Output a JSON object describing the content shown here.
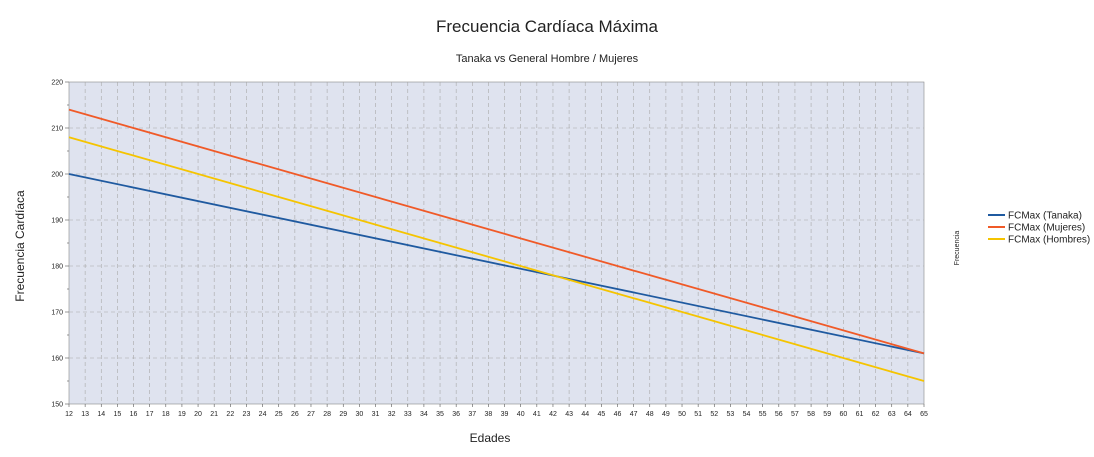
{
  "chart_data": {
    "type": "line",
    "title": "Frecuencia Cardíaca Máxima",
    "subtitle": "Tanaka vs General Hombre / Mujeres",
    "xlabel": "Edades",
    "ylabel": "Frecuencia Cardíaca",
    "side_label": "Frecuencia",
    "xlim": [
      12,
      65
    ],
    "ylim": [
      150,
      220
    ],
    "x_ticks": [
      12,
      13,
      14,
      15,
      16,
      17,
      18,
      19,
      20,
      21,
      22,
      23,
      24,
      25,
      26,
      27,
      28,
      29,
      30,
      31,
      32,
      33,
      34,
      35,
      36,
      37,
      38,
      39,
      40,
      41,
      42,
      43,
      44,
      45,
      46,
      47,
      48,
      49,
      50,
      51,
      52,
      53,
      54,
      55,
      56,
      57,
      58,
      59,
      60,
      61,
      62,
      63,
      64,
      65
    ],
    "y_ticks": [
      150,
      160,
      170,
      180,
      190,
      200,
      210,
      220
    ],
    "grid": true,
    "legend_position": "right",
    "series": [
      {
        "name": "FCMax (Tanaka)",
        "color": "#1f5aa0",
        "x": [
          12,
          65
        ],
        "y": [
          200,
          161
        ]
      },
      {
        "name": "FCMax (Mujeres)",
        "color": "#f05a28",
        "x": [
          12,
          65
        ],
        "y": [
          214,
          161
        ]
      },
      {
        "name": "FCMax (Hombres)",
        "color": "#f5c400",
        "x": [
          12,
          65
        ],
        "y": [
          208,
          155
        ]
      }
    ]
  },
  "colors": {
    "plot_background": "#dfe3ef",
    "grid": "#a8a8a8"
  }
}
